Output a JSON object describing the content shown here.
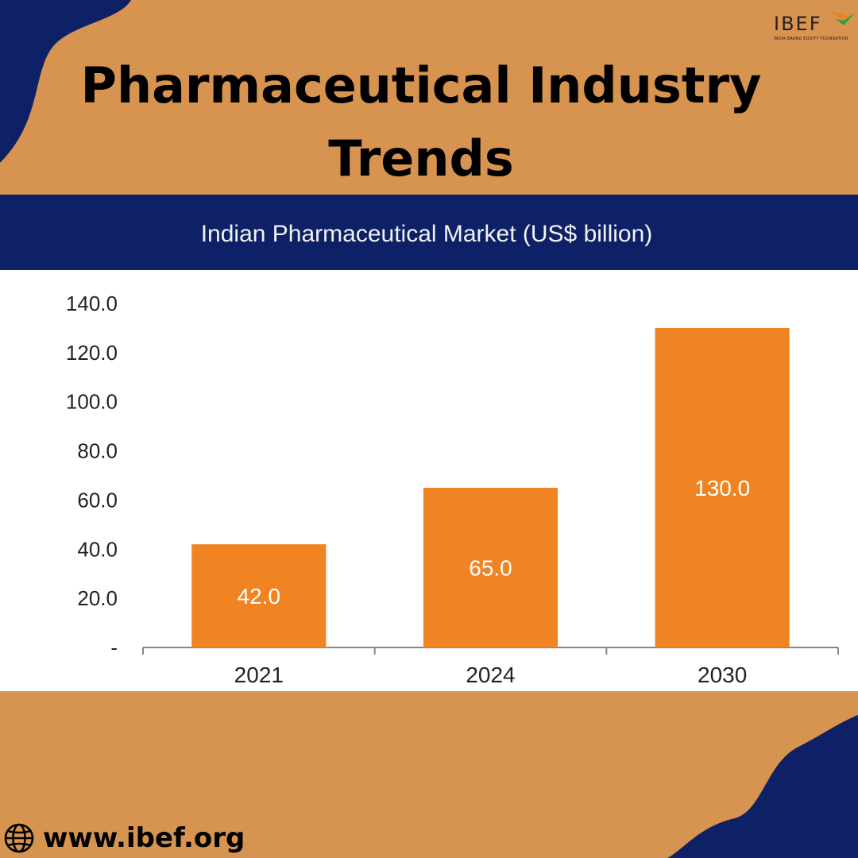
{
  "page": {
    "title_line1": "Pharmaceutical Industry",
    "title_line2": "Trends",
    "logo_text": "IBEF",
    "logo_subtext": "INDIA BRAND EQUITY FOUNDATION",
    "footer_url": "www.ibef.org",
    "footer_icon": "globe-icon"
  },
  "colors": {
    "background": "#D79350",
    "navy": "#0E2167",
    "bar": "#F08423",
    "panel": "#FFFFFF"
  },
  "chart_data": {
    "type": "bar",
    "title": "Indian Pharmaceutical Market (US$ billion)",
    "categories": [
      "2021",
      "2024",
      "2030"
    ],
    "values": [
      42.0,
      65.0,
      130.0
    ],
    "data_labels": [
      "42.0",
      "65.0",
      "130.0"
    ],
    "y_ticks": [
      "-",
      "20.0",
      "40.0",
      "60.0",
      "80.0",
      "100.0",
      "120.0",
      "140.0"
    ],
    "ylim": [
      0,
      140
    ],
    "xlabel": "",
    "ylabel": "",
    "grid": false,
    "legend": "none"
  }
}
